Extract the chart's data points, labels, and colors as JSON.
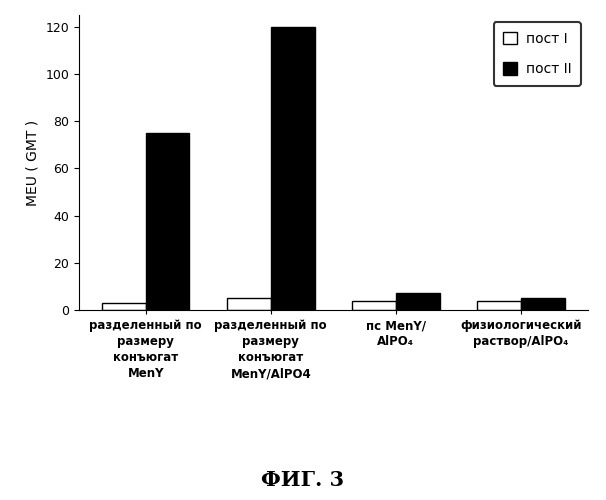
{
  "groups": [
    "разделенный по\nразмеру\nконъюгат\nMenY",
    "разделенный по\nразмеру\nконъюгат\nMenY/AlPO4",
    "пс MenY/\nAlPO₄",
    "физиологический\nраствор/AlPO₄"
  ],
  "post_I_values": [
    3.0,
    5.0,
    4.0,
    4.0
  ],
  "post_II_values": [
    75.0,
    120.0,
    7.0,
    5.0
  ],
  "ylabel": "MEU ( GMT )",
  "ylim": [
    0,
    125
  ],
  "yticks": [
    0,
    20,
    40,
    60,
    80,
    100,
    120
  ],
  "legend_labels": [
    "пост I",
    "пост II"
  ],
  "title": "ФИГ. 3",
  "bar_width": 0.35,
  "post_I_color": "#ffffff",
  "post_II_color": "#000000",
  "bar_edge_color": "#000000",
  "figure_bg": "#ffffff",
  "font_size_xlabel": 8.5,
  "font_size_ylabel": 10,
  "font_size_title": 15
}
